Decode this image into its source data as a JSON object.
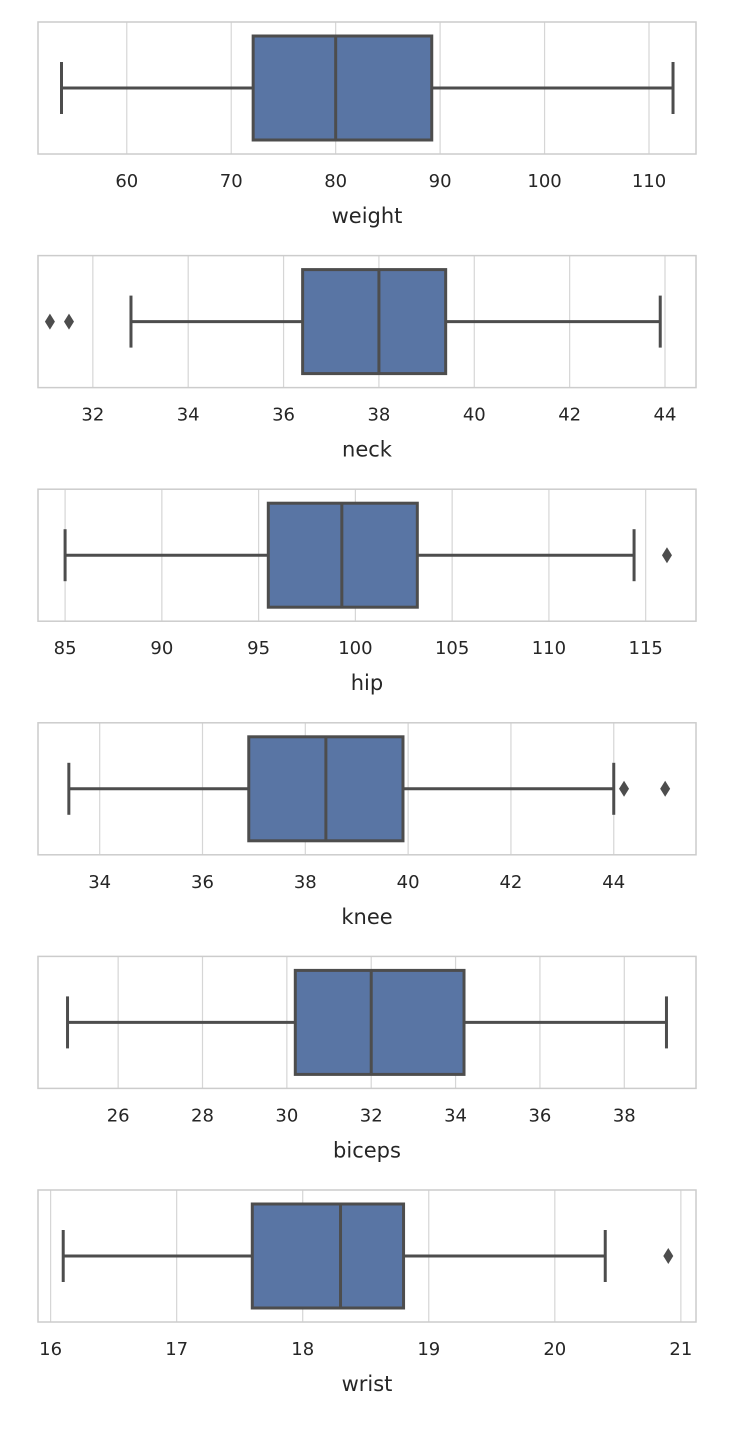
{
  "chart_data": [
    {
      "type": "boxplot",
      "xlabel": "weight",
      "xlim": [
        51.5,
        114.5
      ],
      "ticks": [
        60,
        70,
        80,
        90,
        100,
        110
      ],
      "tick_labels": [
        "60",
        "70",
        "80",
        "90",
        "100",
        "110"
      ],
      "stats": {
        "whisker_low": 53.75,
        "q1": 72.1,
        "median": 80.0,
        "q3": 89.2,
        "whisker_high": 112.3
      },
      "outliers": []
    },
    {
      "type": "boxplot",
      "xlabel": "neck",
      "xlim": [
        30.85,
        44.65
      ],
      "ticks": [
        32,
        34,
        36,
        38,
        40,
        42,
        44
      ],
      "tick_labels": [
        "32",
        "34",
        "36",
        "38",
        "40",
        "42",
        "44"
      ],
      "stats": {
        "whisker_low": 32.8,
        "q1": 36.4,
        "median": 38.0,
        "q3": 39.4,
        "whisker_high": 43.9
      },
      "outliers": [
        31.1,
        31.5
      ]
    },
    {
      "type": "boxplot",
      "xlabel": "hip",
      "xlim": [
        83.6,
        117.6
      ],
      "ticks": [
        85,
        90,
        95,
        100,
        105,
        110,
        115
      ],
      "tick_labels": [
        "85",
        "90",
        "95",
        "100",
        "105",
        "110",
        "115"
      ],
      "stats": {
        "whisker_low": 85.0,
        "q1": 95.5,
        "median": 99.3,
        "q3": 103.2,
        "whisker_high": 114.4
      },
      "outliers": [
        116.1
      ]
    },
    {
      "type": "boxplot",
      "xlabel": "knee",
      "xlim": [
        32.8,
        45.6
      ],
      "ticks": [
        34,
        36,
        38,
        40,
        42,
        44
      ],
      "tick_labels": [
        "34",
        "36",
        "38",
        "40",
        "42",
        "44"
      ],
      "stats": {
        "whisker_low": 33.4,
        "q1": 36.9,
        "median": 38.4,
        "q3": 39.9,
        "whisker_high": 44.0
      },
      "outliers": [
        44.2,
        45.0
      ]
    },
    {
      "type": "boxplot",
      "xlabel": "biceps",
      "xlim": [
        24.1,
        39.7
      ],
      "ticks": [
        26,
        28,
        30,
        32,
        34,
        36,
        38
      ],
      "tick_labels": [
        "26",
        "28",
        "30",
        "32",
        "34",
        "36",
        "38"
      ],
      "stats": {
        "whisker_low": 24.8,
        "q1": 30.2,
        "median": 32.0,
        "q3": 34.2,
        "whisker_high": 39.0
      },
      "outliers": []
    },
    {
      "type": "boxplot",
      "xlabel": "wrist",
      "xlim": [
        15.9,
        21.12
      ],
      "ticks": [
        16,
        17,
        18,
        19,
        20,
        21
      ],
      "tick_labels": [
        "16",
        "17",
        "18",
        "19",
        "20",
        "21"
      ],
      "stats": {
        "whisker_low": 16.1,
        "q1": 17.6,
        "median": 18.3,
        "q3": 18.8,
        "whisker_high": 20.4
      },
      "outliers": [
        20.9
      ]
    }
  ],
  "colors": {
    "box_fill": "#5975a4",
    "line": "#4d4d4d",
    "grid": "#d6d6d6",
    "spine": "#cccccc",
    "text": "#262626",
    "background": "#ffffff"
  }
}
